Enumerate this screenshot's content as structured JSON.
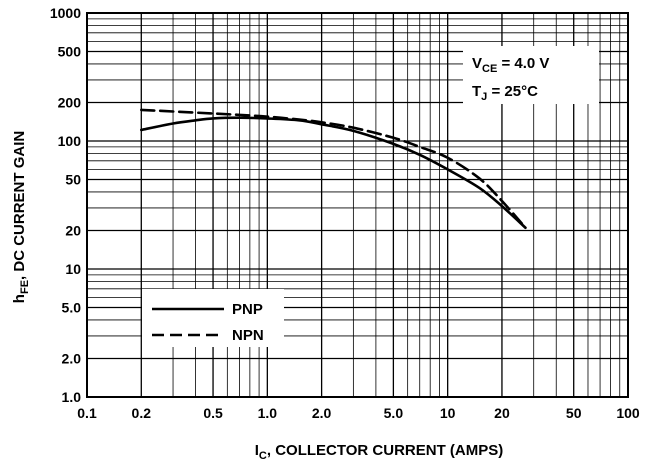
{
  "chart_data": {
    "type": "line",
    "title": "",
    "xlabel": "I",
    "xlabel_sub": "C",
    "xlabel_rest": ", COLLECTOR CURRENT (AMPS)",
    "ylabel": "h",
    "ylabel_sub": "FE",
    "ylabel_rest": ", DC CURRENT GAIN",
    "x_scale": "log",
    "y_scale": "log",
    "xlim": [
      0.1,
      100
    ],
    "ylim": [
      1,
      1000
    ],
    "grid": true,
    "x_ticks": [
      0.1,
      0.2,
      0.5,
      1,
      2,
      5,
      10,
      20,
      50,
      100
    ],
    "x_tick_labels": [
      "0.1",
      "0.2",
      "0.5",
      "1.0",
      "2.0",
      "5.0",
      "10",
      "20",
      "50",
      "100"
    ],
    "y_ticks": [
      1,
      2,
      5,
      10,
      20,
      50,
      100,
      200,
      500,
      1000
    ],
    "y_tick_labels": [
      "1.0",
      "2.0",
      "5.0",
      "10",
      "20",
      "50",
      "100",
      "200",
      "500",
      "1000"
    ],
    "annotations": [
      {
        "main": "V",
        "sub": "CE",
        "rest": " = 4.0 V"
      },
      {
        "main": "T",
        "sub": "J",
        "rest": " = 25°C"
      }
    ],
    "legend_position": "bottom-left",
    "series": [
      {
        "name": "PNP",
        "style": "solid",
        "color": "#000000",
        "x": [
          0.2,
          0.3,
          0.4,
          0.5,
          0.7,
          1.0,
          1.5,
          2.0,
          3.0,
          5.0,
          7.0,
          10,
          15,
          20,
          27
        ],
        "y": [
          122,
          137,
          145,
          150,
          152,
          150,
          145,
          135,
          120,
          95,
          78,
          60,
          43,
          31,
          21
        ]
      },
      {
        "name": "NPN",
        "style": "dashed",
        "color": "#000000",
        "x": [
          0.2,
          0.3,
          0.5,
          0.7,
          1.0,
          1.5,
          2.0,
          3.0,
          5.0,
          7.0,
          10,
          15,
          20,
          27
        ],
        "y": [
          175,
          170,
          164,
          160,
          155,
          147,
          140,
          127,
          106,
          90,
          74,
          51,
          34,
          21
        ]
      }
    ]
  }
}
